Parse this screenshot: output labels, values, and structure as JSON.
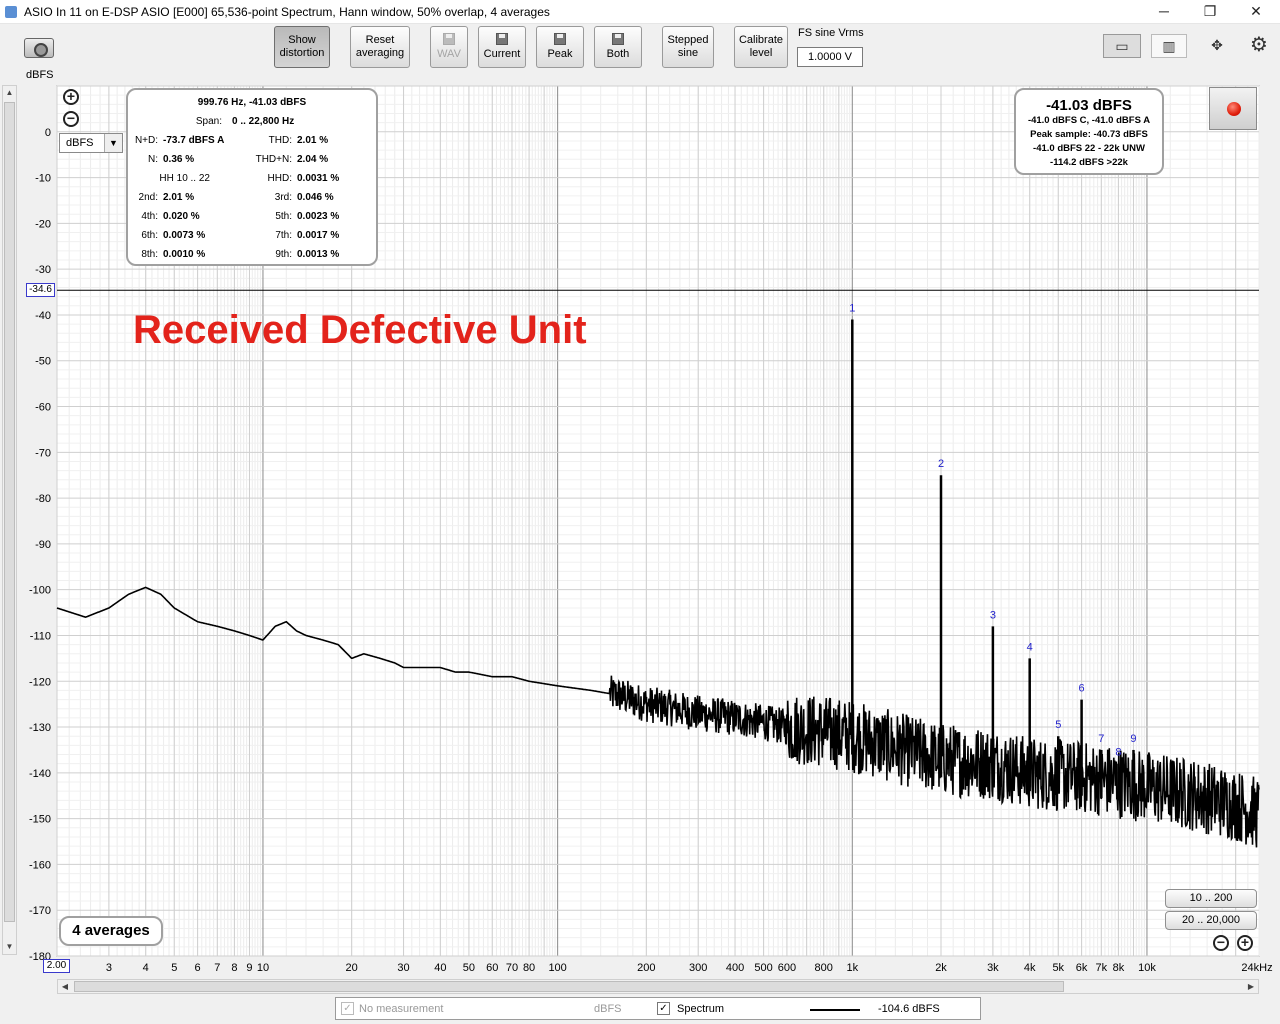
{
  "window": {
    "title": "ASIO In 11 on E-DSP ASIO [E000] 65,536-point Spectrum, Hann window, 50% overlap, 4 averages",
    "minimize": "─",
    "restore": "❐",
    "close": "✕"
  },
  "toolbar": {
    "show_distortion": [
      "Show",
      "distortion"
    ],
    "reset_averaging": [
      "Reset",
      "averaging"
    ],
    "wav": "WAV",
    "current": "Current",
    "peak": "Peak",
    "both": "Both",
    "stepped_sine": [
      "Stepped",
      "sine"
    ],
    "calibrate_level": [
      "Calibrate",
      "level"
    ],
    "fs_label": "FS sine Vrms",
    "fs_value": "1.0000 V"
  },
  "axis": {
    "y_unit_label": "dBFS",
    "unit_select": "dBFS",
    "y_marker": "-34.6",
    "x_start": "2.00"
  },
  "distortion": {
    "header1": "999.76 Hz, -41.03 dBFS",
    "header2_key": "Span:",
    "header2_val": "0 .. 22,800 Hz",
    "rows": [
      {
        "k1": "N+D:",
        "v1": "-73.7 dBFS A",
        "k2": "THD:",
        "v2": "2.01 %"
      },
      {
        "k1": "N:",
        "v1": "0.36 %",
        "k2": "THD+N:",
        "v2": "2.04 %"
      },
      {
        "k1": "HH 10 .. 22",
        "v1": "",
        "k2": "HHD:",
        "v2": "0.0031 %"
      },
      {
        "k1": "2nd:",
        "v1": "2.01 %",
        "k2": "3rd:",
        "v2": "0.046 %"
      },
      {
        "k1": "4th:",
        "v1": "0.020 %",
        "k2": "5th:",
        "v2": "0.0023 %"
      },
      {
        "k1": "6th:",
        "v1": "0.0073 %",
        "k2": "7th:",
        "v2": "0.0017 %"
      },
      {
        "k1": "8th:",
        "v1": "0.0010 %",
        "k2": "9th:",
        "v2": "0.0013 %"
      }
    ]
  },
  "level": {
    "main": "-41.03 dBFS",
    "lines": [
      "-41.0 dBFS C, -41.0 dBFS A",
      "Peak sample: -40.73 dBFS",
      "-41.0 dBFS 22 - 22k UNW",
      "-114.2 dBFS >22k"
    ]
  },
  "averages": "4 averages",
  "annotation": "Received Defective Unit",
  "range_buttons": {
    "r1": "10 .. 200",
    "r2": "20 .. 20,000"
  },
  "legend": {
    "no_measurement": "No measurement",
    "no_measurement_unit": "dBFS",
    "spectrum": "Spectrum",
    "spectrum_value": "-104.6 dBFS"
  },
  "chart_data": {
    "type": "line",
    "xscale": "log",
    "xlim": [
      2,
      24000
    ],
    "ylim": [
      -180,
      10
    ],
    "ylabel": "dBFS",
    "grid": true,
    "y_ticks": [
      0,
      -10,
      -20,
      -30,
      -40,
      -50,
      -60,
      -70,
      -80,
      -90,
      -100,
      -110,
      -120,
      -130,
      -140,
      -150,
      -160,
      -170,
      -180
    ],
    "y_tick_labels": [
      "0",
      "-10",
      "-20",
      "-30",
      "-40",
      "-50",
      "-60",
      "-70",
      "-80",
      "-90",
      "-100",
      "-110",
      "-120",
      "-130",
      "-140",
      "-150",
      "-160",
      "-170",
      "-180"
    ],
    "x_ticks": [
      3,
      4,
      5,
      6,
      7,
      8,
      9,
      10,
      20,
      30,
      40,
      50,
      60,
      70,
      80,
      100,
      200,
      300,
      400,
      500,
      600,
      800,
      1000,
      2000,
      3000,
      4000,
      5000,
      6000,
      7000,
      8000,
      10000,
      24000
    ],
    "x_tick_labels": [
      "3",
      "4",
      "5",
      "6",
      "7",
      "8",
      "9",
      "10",
      "20",
      "30",
      "40",
      "50",
      "60",
      "70",
      "80",
      "100",
      "200",
      "300",
      "400",
      "500",
      "600",
      "800",
      "1k",
      "2k",
      "3k",
      "4k",
      "5k",
      "6k",
      "7k",
      "8k",
      "10k",
      "24kHz"
    ],
    "cursor_level": -34.6,
    "harmonics": [
      {
        "label": "1",
        "freq": 1000,
        "level": -41
      },
      {
        "label": "2",
        "freq": 2000,
        "level": -75
      },
      {
        "label": "3",
        "freq": 3000,
        "level": -108
      },
      {
        "label": "4",
        "freq": 4000,
        "level": -115
      },
      {
        "label": "5",
        "freq": 5000,
        "level": -132
      },
      {
        "label": "6",
        "freq": 6000,
        "level": -124
      },
      {
        "label": "7",
        "freq": 7000,
        "level": -135
      },
      {
        "label": "8",
        "freq": 8000,
        "level": -138
      },
      {
        "label": "9",
        "freq": 9000,
        "level": -135
      }
    ],
    "series": [
      {
        "name": "Spectrum",
        "freq": [
          2,
          2.5,
          3,
          3.5,
          4,
          4.5,
          5,
          6,
          7,
          8,
          9,
          10,
          11,
          12,
          13,
          14,
          16,
          18,
          20,
          22,
          25,
          28,
          30,
          35,
          40,
          45,
          50,
          60,
          70,
          80,
          100,
          130,
          160,
          200,
          250,
          300,
          400,
          500,
          600,
          800,
          1000,
          1500,
          2000,
          3000,
          4000,
          6000,
          8000,
          10000,
          15000,
          20000,
          24000
        ],
        "level": [
          -104,
          -106,
          -104,
          -101,
          -99.5,
          -101,
          -104,
          -107,
          -108,
          -109,
          -110,
          -111,
          -108,
          -107,
          -109,
          -110,
          -111,
          -112,
          -115,
          -114,
          -115,
          -116,
          -117,
          -117,
          -117,
          -118,
          -118,
          -119,
          -119,
          -120,
          -121,
          -122,
          -123,
          -125,
          -126,
          -127,
          -128,
          -129,
          -130,
          -131,
          -132,
          -135,
          -137,
          -138,
          -140,
          -141,
          -142,
          -143,
          -145,
          -147,
          -149
        ]
      }
    ]
  }
}
